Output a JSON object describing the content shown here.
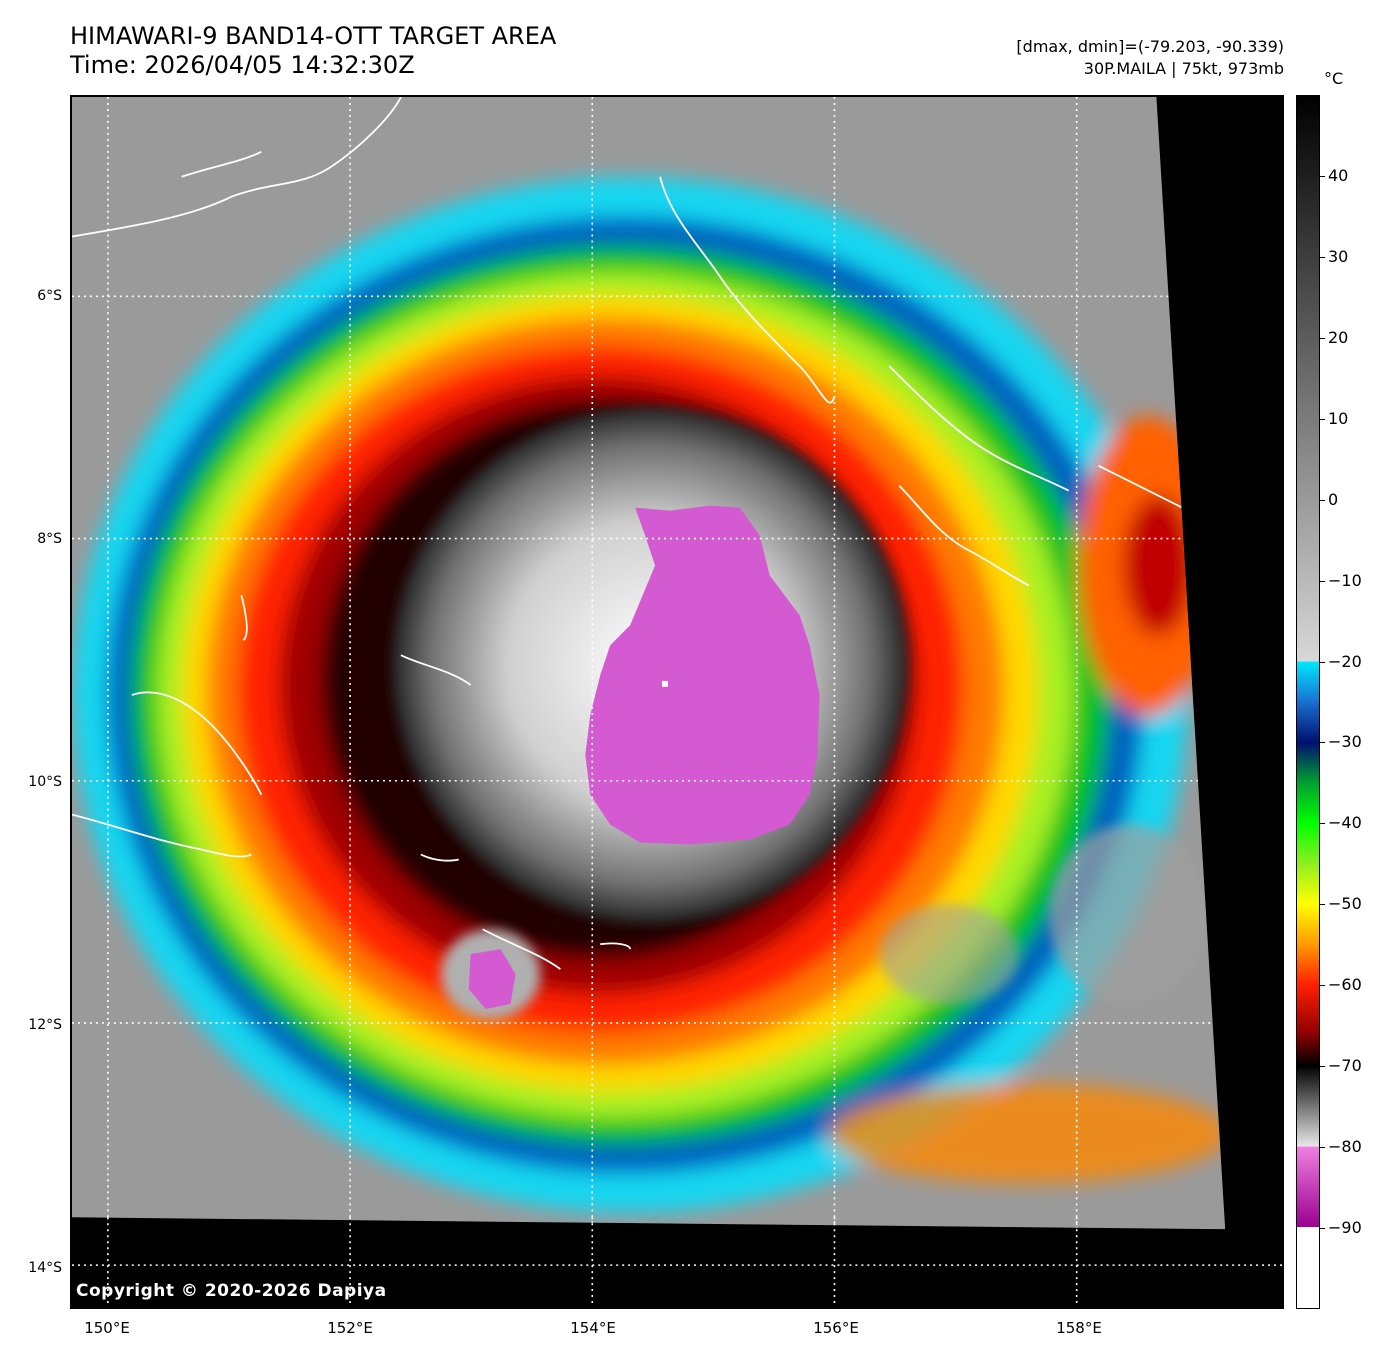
{
  "header": {
    "title": "HIMAWARI-9 BAND14-OTT TARGET AREA",
    "time": "Time: 2026/04/05 14:32:30Z",
    "range": "[dmax, dmin]=(-79.203, -90.339)",
    "storm": "30P.MAILA | 75kt, 973mb"
  },
  "map": {
    "copyright": "Copyright © 2020-2026 Dapiya",
    "lat_labels": [
      "6°S",
      "8°S",
      "10°S",
      "12°S",
      "14°S"
    ],
    "lon_labels": [
      "150°E",
      "152°E",
      "154°E",
      "156°E",
      "158°E"
    ],
    "eye": {
      "lat": -9.2,
      "lon": 154.6
    }
  },
  "colorbar": {
    "unit": "°C",
    "ticks": [
      "40",
      "30",
      "20",
      "10",
      "0",
      "−10",
      "−20",
      "−30",
      "−40",
      "−50",
      "−60",
      "−70",
      "−80",
      "−90"
    ],
    "min": -100,
    "max": 50,
    "stops": [
      {
        "t": 50,
        "color": "#000000"
      },
      {
        "t": -20,
        "color": "#d8d8d8"
      },
      {
        "t": -20,
        "color": "#00e8ff"
      },
      {
        "t": -25,
        "color": "#1a6fd0"
      },
      {
        "t": -30,
        "color": "#001070"
      },
      {
        "t": -35,
        "color": "#00a030"
      },
      {
        "t": -40,
        "color": "#00ff00"
      },
      {
        "t": -45,
        "color": "#90ee20"
      },
      {
        "t": -50,
        "color": "#ffff00"
      },
      {
        "t": -55,
        "color": "#ff9900"
      },
      {
        "t": -60,
        "color": "#ff2000"
      },
      {
        "t": -66,
        "color": "#900000"
      },
      {
        "t": -70,
        "color": "#000000"
      },
      {
        "t": -80,
        "color": "#e8e8e8"
      },
      {
        "t": -80,
        "color": "#f080e0"
      },
      {
        "t": -90,
        "color": "#9a0090"
      },
      {
        "t": -90,
        "color": "#ffffff"
      },
      {
        "t": -100,
        "color": "#ffffff"
      }
    ]
  }
}
